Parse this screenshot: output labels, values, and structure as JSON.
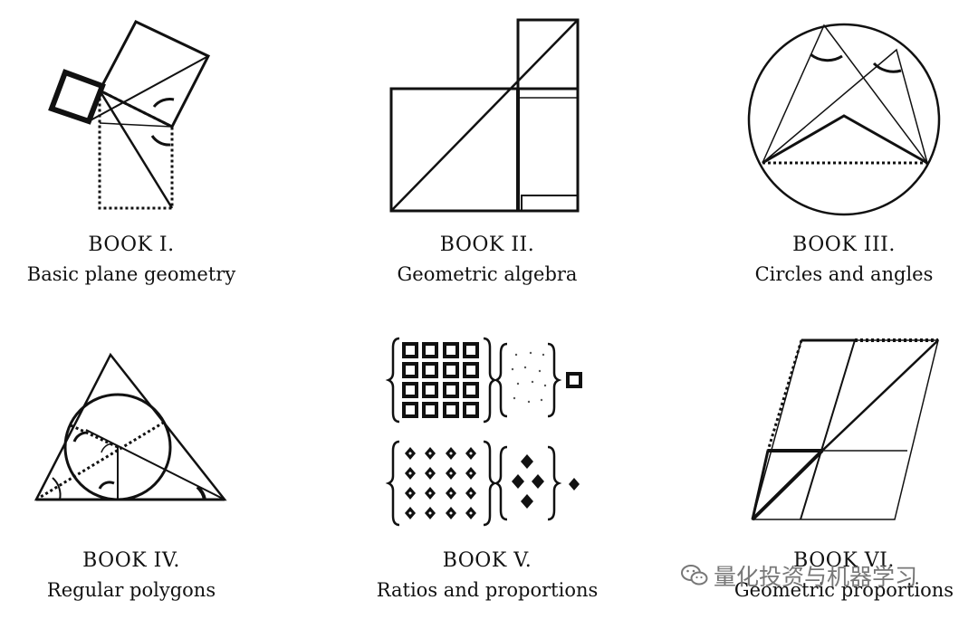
{
  "books": [
    {
      "number": "BOOK I.",
      "subtitle": "Basic plane geometry",
      "icon": "pythagoras-figure-icon"
    },
    {
      "number": "BOOK II.",
      "subtitle": "Geometric algebra",
      "icon": "square-diagonal-icon"
    },
    {
      "number": "BOOK III.",
      "subtitle": "Circles and angles",
      "icon": "inscribed-angles-icon"
    },
    {
      "number": "BOOK IV.",
      "subtitle": "Regular polygons",
      "icon": "incircle-triangle-icon"
    },
    {
      "number": "BOOK V.",
      "subtitle": "Ratios and proportions",
      "icon": "ratio-arrays-icon"
    },
    {
      "number": "BOOK VI.",
      "subtitle": "Geometric proportions",
      "icon": "parallelogram-diagonal-icon"
    }
  ],
  "watermark": {
    "text": "量化投资与机器学习",
    "icon": "wechat-icon"
  }
}
